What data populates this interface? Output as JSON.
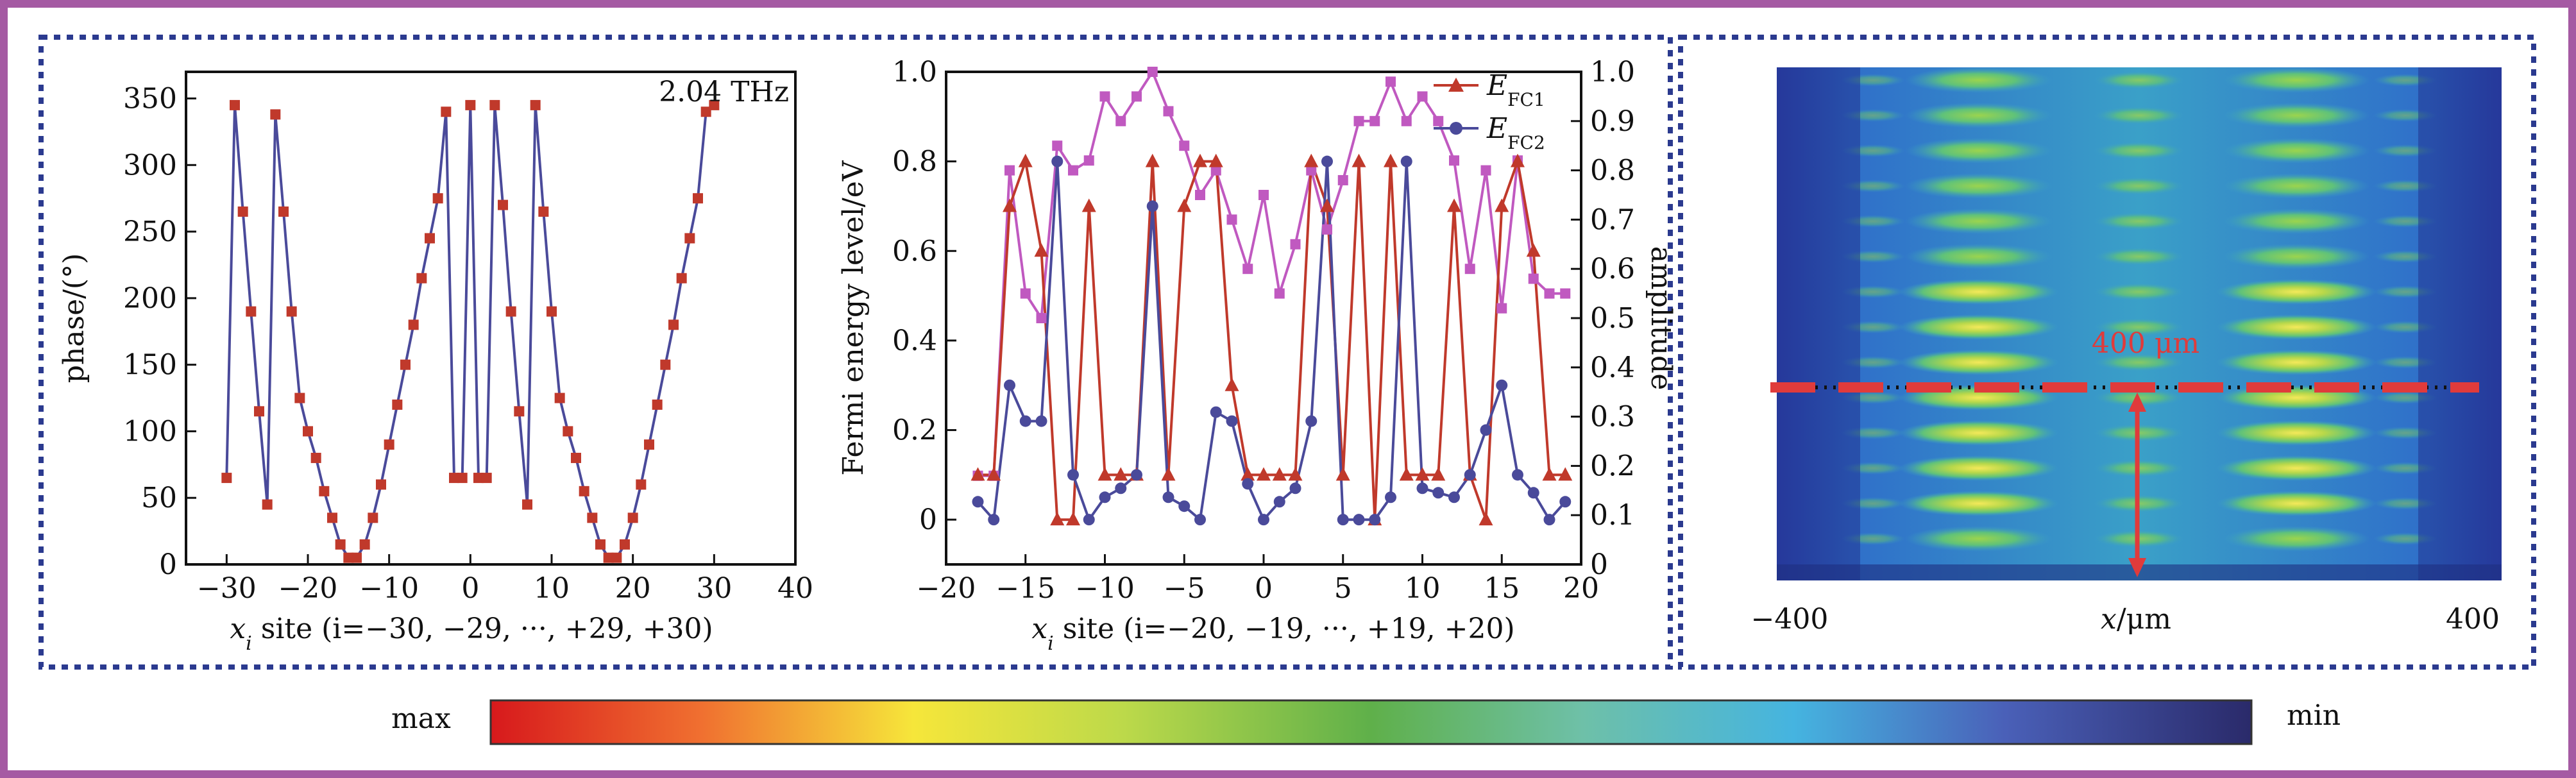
{
  "colors": {
    "outer_border": "#a55aa3",
    "dotted_border": "#2b3a8f",
    "red_series": "#c0392b",
    "red_marker": "#c0392b",
    "blue_series": "#4a4a9a",
    "magenta_series": "#c059c0",
    "dashed_line": "#e03b3b",
    "arrow": "#e03b3b"
  },
  "chart_data": [
    {
      "type": "line",
      "title": "2.04 THz",
      "xlabel_var": "x",
      "xlabel_sub": "i",
      "xlabel_rest": " site (i=−30, −29, ···, +29, +30)",
      "ylabel": "phase/(°)",
      "xlim": [
        -35,
        40
      ],
      "ylim": [
        0,
        370
      ],
      "xticks": [
        -30,
        -20,
        -10,
        0,
        10,
        20,
        30,
        40
      ],
      "xtick_labels": [
        "−30",
        "−20",
        "−10",
        "0",
        "10",
        "20",
        "30",
        "40"
      ],
      "yticks": [
        0,
        50,
        100,
        150,
        200,
        250,
        300,
        350
      ],
      "ytick_labels": [
        "0",
        "50",
        "100",
        "150",
        "200",
        "250",
        "300",
        "350"
      ],
      "grid": false,
      "series": [
        {
          "x": [
            -30,
            -29,
            -28,
            -27,
            -26,
            -25,
            -24,
            -23,
            -22,
            -21,
            -20,
            -19,
            -18,
            -17,
            -16,
            -15,
            -14,
            -13,
            -12,
            -11,
            -10,
            -9,
            -8,
            -7,
            -6,
            -5,
            -4,
            -3,
            -2,
            -1,
            0,
            1,
            2,
            3,
            4,
            5,
            6,
            7,
            8,
            9,
            10,
            11,
            12,
            13,
            14,
            15,
            16,
            17,
            18,
            19,
            20,
            21,
            22,
            23,
            24,
            25,
            26,
            27,
            28,
            29,
            30
          ],
          "y": [
            65,
            345,
            265,
            190,
            115,
            45,
            338,
            265,
            190,
            125,
            100,
            80,
            55,
            35,
            15,
            5,
            5,
            15,
            35,
            60,
            90,
            120,
            150,
            180,
            215,
            245,
            275,
            340,
            65,
            65,
            345,
            65,
            65,
            345,
            270,
            190,
            115,
            45,
            345,
            265,
            190,
            125,
            100,
            80,
            55,
            35,
            15,
            5,
            5,
            15,
            35,
            60,
            90,
            120,
            150,
            180,
            215,
            245,
            275,
            340,
            345
          ]
        }
      ]
    },
    {
      "type": "line",
      "title": "",
      "xlabel_var": "x",
      "xlabel_sub": "i",
      "xlabel_rest": " site (i=−20, −19, ···, +19, +20)",
      "ylabel": "Fermi energy level/eV",
      "ylabel_right": "amplitude",
      "xlim": [
        -20,
        20
      ],
      "ylim": [
        -0.1,
        1.0
      ],
      "ylim_right": [
        0,
        1.0
      ],
      "xticks": [
        -20,
        -15,
        -10,
        -5,
        0,
        5,
        10,
        15,
        20
      ],
      "xtick_labels": [
        "−20",
        "−15",
        "−10",
        "−5",
        "0",
        "5",
        "10",
        "15",
        "20"
      ],
      "yticks": [
        0,
        0.2,
        0.4,
        0.6,
        0.8,
        1.0
      ],
      "ytick_labels": [
        "0",
        "0.2",
        "0.4",
        "0.6",
        "0.8",
        "1.0"
      ],
      "yticks_right": [
        0,
        0.1,
        0.2,
        0.3,
        0.4,
        0.5,
        0.6,
        0.7,
        0.8,
        0.9,
        1.0
      ],
      "ytick_labels_right": [
        "0",
        "0.1",
        "0.2",
        "0.3",
        "0.4",
        "0.5",
        "0.6",
        "0.7",
        "0.8",
        "0.9",
        "1.0"
      ],
      "legend": [
        {
          "main": "E",
          "sub": "FC1"
        },
        {
          "main": "E",
          "sub": "FC2"
        }
      ],
      "legend_position": "top-right",
      "grid": false,
      "x": [
        -18,
        -17,
        -16,
        -15,
        -14,
        -13,
        -12,
        -11,
        -10,
        -9,
        -8,
        -7,
        -6,
        -5,
        -4,
        -3,
        -2,
        -1,
        0,
        1,
        2,
        3,
        4,
        5,
        6,
        7,
        8,
        9,
        10,
        11,
        12,
        13,
        14,
        15,
        16,
        17,
        18,
        19
      ],
      "series": [
        {
          "name_main": "E",
          "name_sub": "FC1",
          "axis": "left",
          "marker": "triangle",
          "values": [
            0.1,
            0.1,
            0.7,
            0.8,
            0.6,
            0,
            0,
            0.7,
            0.1,
            0.1,
            0.1,
            0.8,
            0.1,
            0.7,
            0.8,
            0.8,
            0.3,
            0.1,
            0.1,
            0.1,
            0.1,
            0.8,
            0.7,
            0.1,
            0.8,
            0,
            0.8,
            0.1,
            0.1,
            0.1,
            0.7,
            0.1,
            0,
            0.7,
            0.8,
            0.6,
            0.1,
            0.1
          ]
        },
        {
          "name_main": "E",
          "name_sub": "FC2",
          "axis": "left",
          "marker": "circle",
          "values": [
            0.04,
            0,
            0.3,
            0.22,
            0.22,
            0.8,
            0.1,
            0,
            0.05,
            0.07,
            0.1,
            0.7,
            0.05,
            0.03,
            0,
            0.24,
            0.22,
            0.08,
            0,
            0.04,
            0.07,
            0.22,
            0.8,
            0,
            0,
            0,
            0.05,
            0.8,
            0.07,
            0.06,
            0.05,
            0.1,
            0.2,
            0.3,
            0.1,
            0.06,
            0,
            0.04
          ]
        },
        {
          "name_main": "",
          "name_sub": "",
          "axis": "right",
          "marker": "square",
          "values": [
            0.18,
            0.18,
            0.8,
            0.55,
            0.5,
            0.85,
            0.8,
            0.82,
            0.95,
            0.9,
            0.95,
            1.0,
            0.92,
            0.85,
            0.75,
            0.8,
            0.7,
            0.6,
            0.75,
            0.55,
            0.65,
            0.8,
            0.68,
            0.78,
            0.9,
            0.9,
            0.98,
            0.9,
            0.95,
            0.9,
            0.82,
            0.6,
            0.8,
            0.52,
            0.82,
            0.58,
            0.55,
            0.55
          ]
        }
      ]
    },
    {
      "type": "heatmap",
      "xlabel_var": "x",
      "xlabel_unit": "/μm",
      "xtick_labels": [
        "−400",
        "400"
      ],
      "annotation": "400 μm",
      "colorbar": {
        "max_label": "max",
        "min_label": "min"
      }
    }
  ]
}
